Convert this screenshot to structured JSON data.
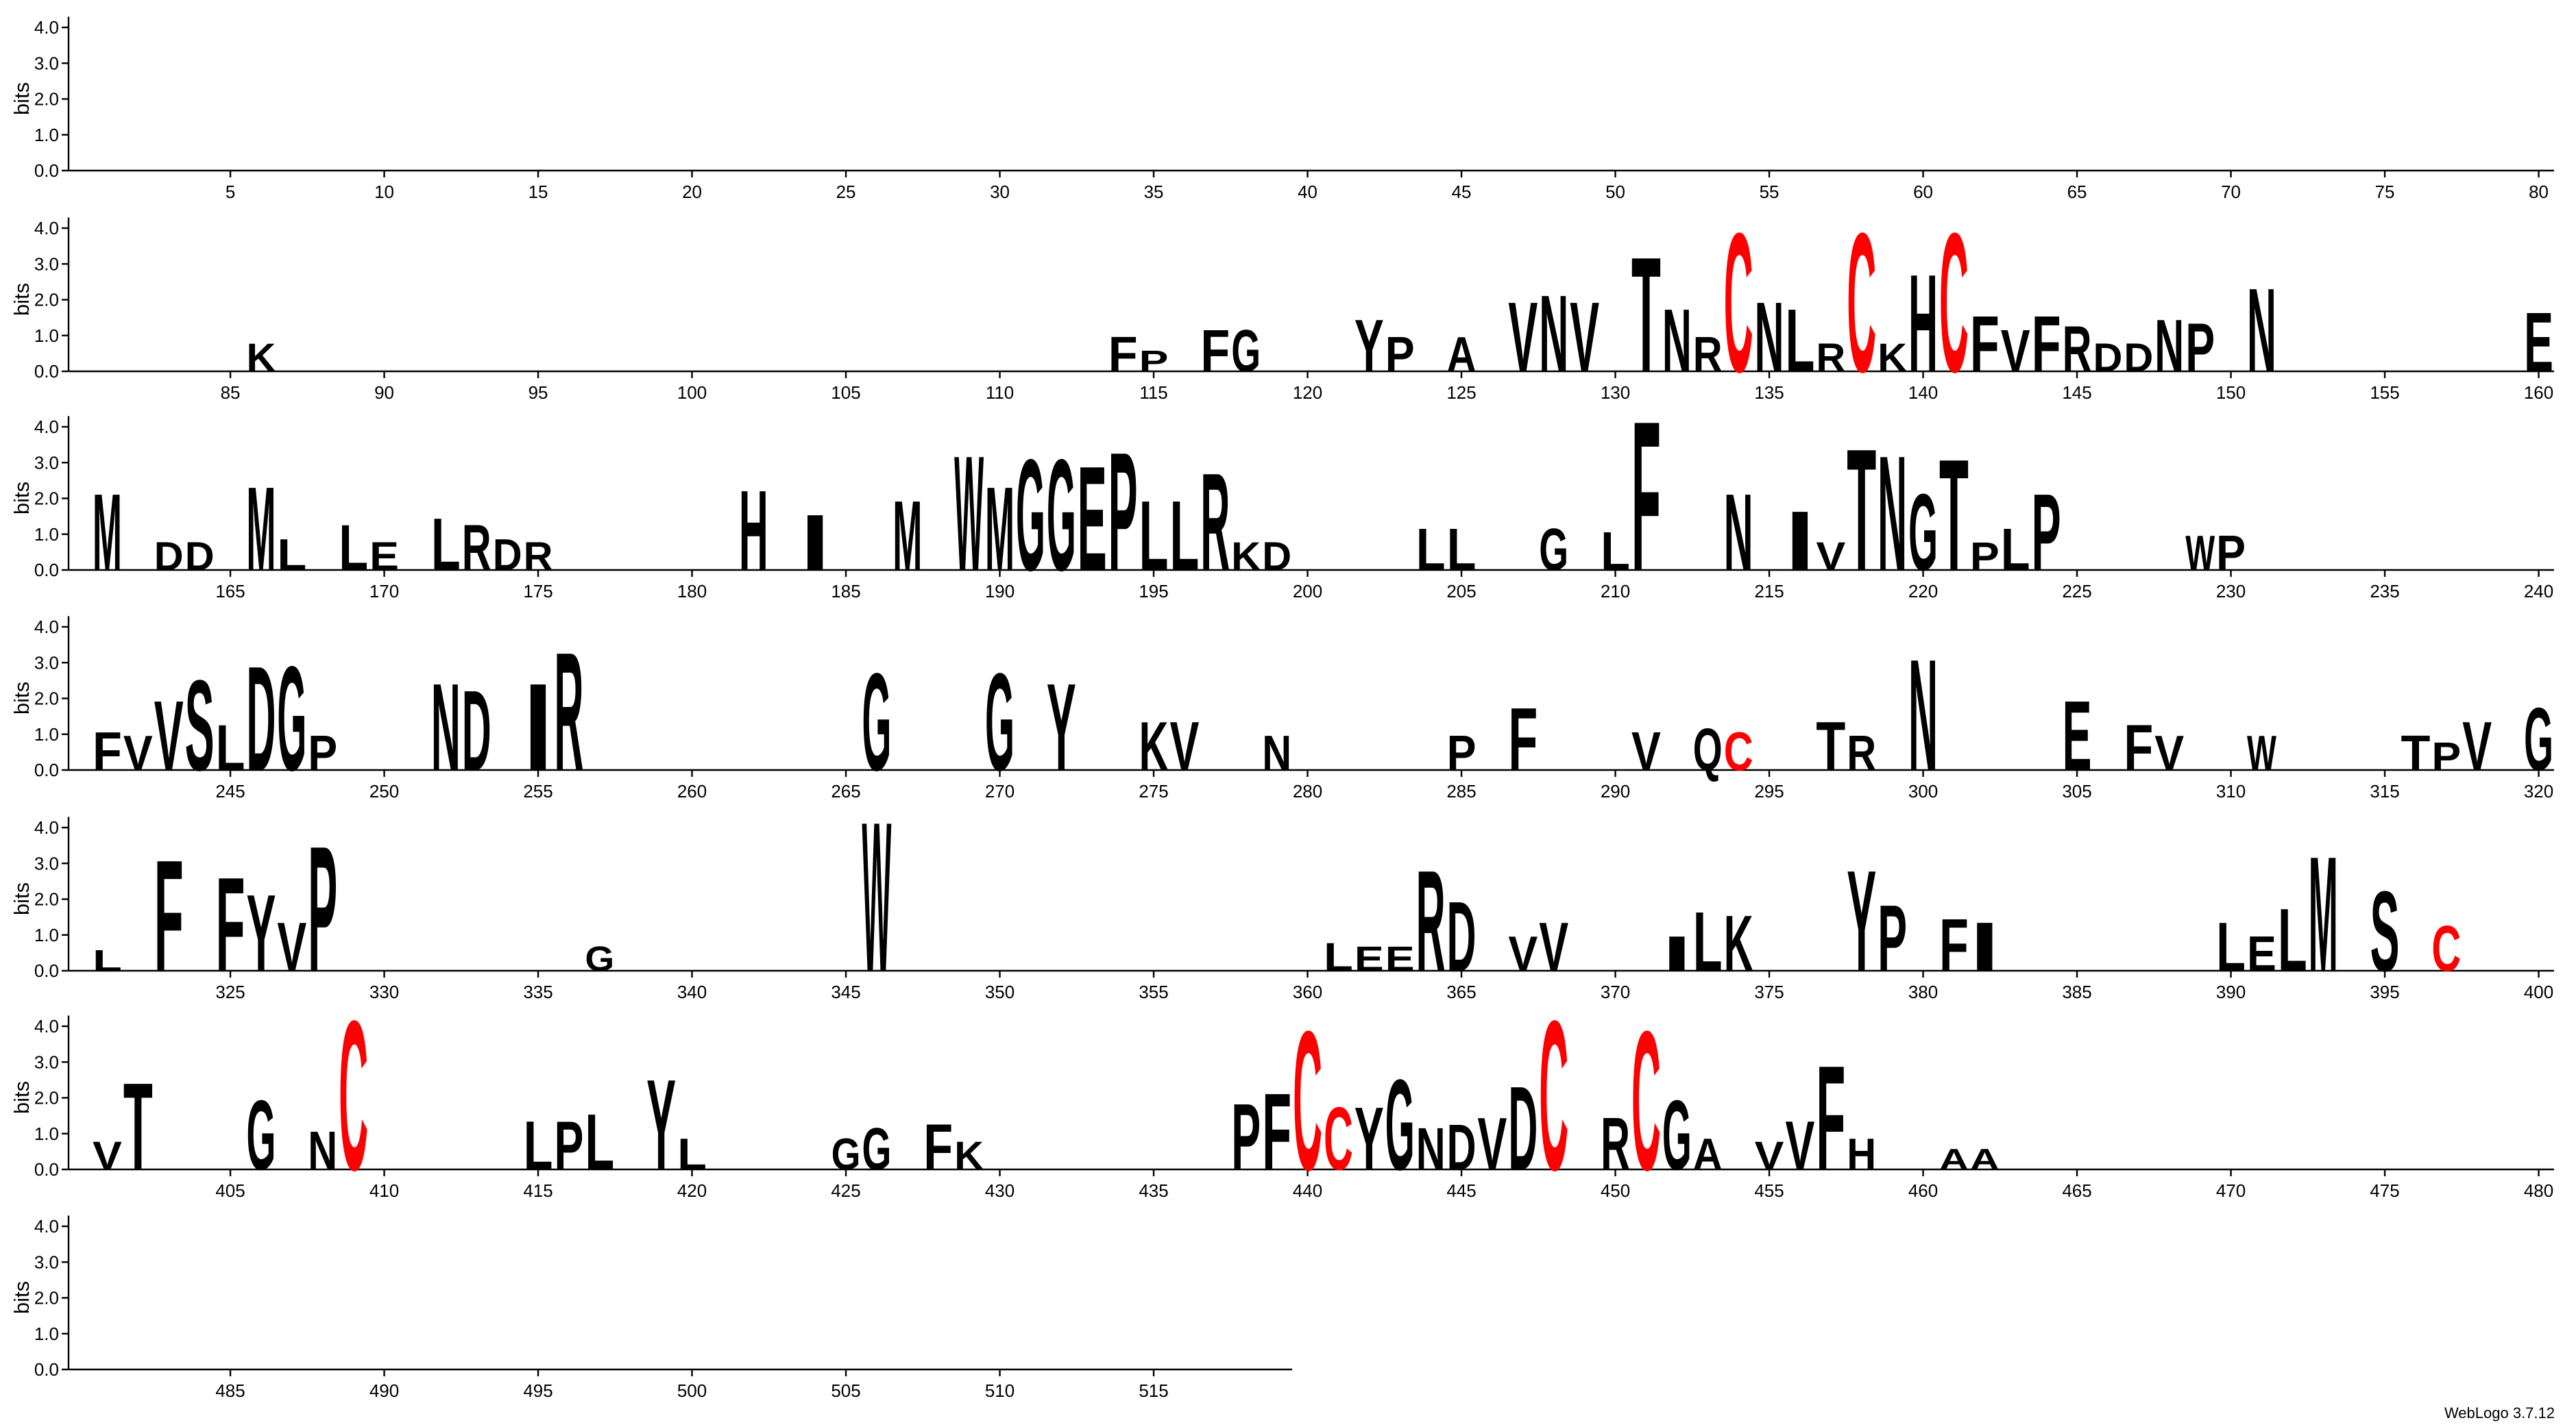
{
  "chart_data": {
    "type": "logo",
    "ylabel": "bits",
    "ylim": [
      0,
      4.3
    ],
    "yticks": [
      {
        "value": 0,
        "label": "0.0"
      },
      {
        "value": 1,
        "label": "1.0"
      },
      {
        "value": 2,
        "label": "2.0"
      },
      {
        "value": 3,
        "label": "3.0"
      },
      {
        "value": 4,
        "label": "4.0"
      }
    ],
    "rows": [
      {
        "xlim": [
          0.5,
          80.5
        ]
      },
      {
        "xlim": [
          80.5,
          160.5
        ]
      },
      {
        "xlim": [
          160.5,
          240.5
        ]
      },
      {
        "xlim": [
          240.5,
          320.5
        ]
      },
      {
        "xlim": [
          320.5,
          400.5
        ]
      },
      {
        "xlim": [
          400.5,
          480.5
        ]
      },
      {
        "xlim": [
          480.5,
          519.5
        ]
      }
    ],
    "xticks": [
      5,
      10,
      15,
      20,
      25,
      30,
      35,
      40,
      45,
      50,
      55,
      60,
      65,
      70,
      75,
      80,
      85,
      90,
      95,
      100,
      105,
      110,
      115,
      120,
      125,
      130,
      135,
      140,
      145,
      150,
      155,
      160,
      165,
      170,
      175,
      180,
      185,
      190,
      195,
      200,
      205,
      210,
      215,
      220,
      225,
      230,
      235,
      240,
      245,
      250,
      255,
      260,
      265,
      270,
      275,
      280,
      285,
      290,
      295,
      300,
      305,
      310,
      315,
      320,
      325,
      330,
      335,
      340,
      345,
      350,
      355,
      360,
      365,
      370,
      375,
      380,
      385,
      390,
      395,
      400,
      405,
      410,
      415,
      420,
      425,
      430,
      435,
      440,
      445,
      450,
      455,
      460,
      465,
      470,
      475,
      480,
      485,
      490,
      495,
      500,
      505,
      510,
      515
    ],
    "color": "#000000",
    "colors": {
      "C": "#ff0000"
    },
    "stacks": [
      {
        "x": 86,
        "letter": "K",
        "bits": 0.8
      },
      {
        "x": 114,
        "letter": "F",
        "bits": 1.0
      },
      {
        "x": 115,
        "letter": "P",
        "bits": 0.6
      },
      {
        "x": 117,
        "letter": "F",
        "bits": 1.2
      },
      {
        "x": 118,
        "letter": "G",
        "bits": 1.2
      },
      {
        "x": 122,
        "letter": "Y",
        "bits": 1.5
      },
      {
        "x": 123,
        "letter": "P",
        "bits": 1.0
      },
      {
        "x": 125,
        "letter": "A",
        "bits": 1.0
      },
      {
        "x": 127,
        "letter": "V",
        "bits": 2.0
      },
      {
        "x": 128,
        "letter": "N",
        "bits": 2.2
      },
      {
        "x": 129,
        "letter": "V",
        "bits": 2.0
      },
      {
        "x": 131,
        "letter": "T",
        "bits": 3.3
      },
      {
        "x": 132,
        "letter": "N",
        "bits": 1.8
      },
      {
        "x": 133,
        "letter": "R",
        "bits": 1.0
      },
      {
        "x": 134,
        "letter": "C",
        "bits": 4.0
      },
      {
        "x": 135,
        "letter": "N",
        "bits": 2.0
      },
      {
        "x": 136,
        "letter": "L",
        "bits": 1.8
      },
      {
        "x": 137,
        "letter": "R",
        "bits": 0.8
      },
      {
        "x": 138,
        "letter": "C",
        "bits": 4.0
      },
      {
        "x": 139,
        "letter": "K",
        "bits": 0.8
      },
      {
        "x": 140,
        "letter": "H",
        "bits": 2.8
      },
      {
        "x": 141,
        "letter": "C",
        "bits": 4.0
      },
      {
        "x": 142,
        "letter": "F",
        "bits": 1.6
      },
      {
        "x": 143,
        "letter": "V",
        "bits": 1.2
      },
      {
        "x": 144,
        "letter": "F",
        "bits": 1.6
      },
      {
        "x": 145,
        "letter": "R",
        "bits": 1.3
      },
      {
        "x": 146,
        "letter": "D",
        "bits": 0.8
      },
      {
        "x": 147,
        "letter": "D",
        "bits": 0.8
      },
      {
        "x": 148,
        "letter": "N",
        "bits": 1.5
      },
      {
        "x": 149,
        "letter": "P",
        "bits": 1.4
      },
      {
        "x": 151,
        "letter": "N",
        "bits": 2.4
      },
      {
        "x": 160,
        "letter": "E",
        "bits": 1.7
      },
      {
        "x": 161,
        "letter": "M",
        "bits": 2.2
      },
      {
        "x": 163,
        "letter": "D",
        "bits": 0.8
      },
      {
        "x": 164,
        "letter": "D",
        "bits": 0.8
      },
      {
        "x": 166,
        "letter": "M",
        "bits": 2.4
      },
      {
        "x": 167,
        "letter": "L",
        "bits": 0.9
      },
      {
        "x": 169,
        "letter": "L",
        "bits": 1.3
      },
      {
        "x": 170,
        "letter": "E",
        "bits": 0.8
      },
      {
        "x": 172,
        "letter": "L",
        "bits": 1.5
      },
      {
        "x": 173,
        "letter": "R",
        "bits": 1.3
      },
      {
        "x": 174,
        "letter": "D",
        "bits": 0.9
      },
      {
        "x": 175,
        "letter": "R",
        "bits": 0.8
      },
      {
        "x": 182,
        "letter": "H",
        "bits": 2.3
      },
      {
        "x": 184,
        "letter": "I",
        "bits": 1.6
      },
      {
        "x": 187,
        "letter": "M",
        "bits": 2.0
      },
      {
        "x": 189,
        "letter": "W",
        "bits": 3.3
      },
      {
        "x": 190,
        "letter": "M",
        "bits": 2.4
      },
      {
        "x": 191,
        "letter": "G",
        "bits": 3.2
      },
      {
        "x": 192,
        "letter": "G",
        "bits": 3.2
      },
      {
        "x": 193,
        "letter": "E",
        "bits": 3.0
      },
      {
        "x": 194,
        "letter": "P",
        "bits": 3.4
      },
      {
        "x": 195,
        "letter": "L",
        "bits": 2.0
      },
      {
        "x": 196,
        "letter": "L",
        "bits": 2.0
      },
      {
        "x": 197,
        "letter": "R",
        "bits": 2.8
      },
      {
        "x": 198,
        "letter": "K",
        "bits": 0.8
      },
      {
        "x": 199,
        "letter": "D",
        "bits": 0.8
      },
      {
        "x": 204,
        "letter": "L",
        "bits": 1.2
      },
      {
        "x": 205,
        "letter": "L",
        "bits": 1.2
      },
      {
        "x": 208,
        "letter": "G",
        "bits": 1.2
      },
      {
        "x": 210,
        "letter": "L",
        "bits": 1.1
      },
      {
        "x": 211,
        "letter": "F",
        "bits": 4.3
      },
      {
        "x": 214,
        "letter": "N",
        "bits": 2.2
      },
      {
        "x": 216,
        "letter": "I",
        "bits": 1.7
      },
      {
        "x": 217,
        "letter": "V",
        "bits": 0.8
      },
      {
        "x": 218,
        "letter": "T",
        "bits": 3.5
      },
      {
        "x": 219,
        "letter": "N",
        "bits": 3.3
      },
      {
        "x": 220,
        "letter": "G",
        "bits": 2.2
      },
      {
        "x": 221,
        "letter": "T",
        "bits": 3.2
      },
      {
        "x": 222,
        "letter": "P",
        "bits": 0.8
      },
      {
        "x": 223,
        "letter": "L",
        "bits": 1.2
      },
      {
        "x": 224,
        "letter": "P",
        "bits": 2.2
      },
      {
        "x": 229,
        "letter": "W",
        "bits": 1.0
      },
      {
        "x": 230,
        "letter": "P",
        "bits": 1.0
      },
      {
        "x": 241,
        "letter": "F",
        "bits": 1.1
      },
      {
        "x": 242,
        "letter": "V",
        "bits": 1.0
      },
      {
        "x": 243,
        "letter": "V",
        "bits": 2.0
      },
      {
        "x": 244,
        "letter": "S",
        "bits": 2.6
      },
      {
        "x": 245,
        "letter": "L",
        "bits": 1.3
      },
      {
        "x": 246,
        "letter": "D",
        "bits": 3.0
      },
      {
        "x": 247,
        "letter": "G",
        "bits": 3.0
      },
      {
        "x": 248,
        "letter": "P",
        "bits": 1.0
      },
      {
        "x": 252,
        "letter": "N",
        "bits": 2.5
      },
      {
        "x": 253,
        "letter": "D",
        "bits": 2.3
      },
      {
        "x": 255,
        "letter": "I",
        "bits": 2.5
      },
      {
        "x": 256,
        "letter": "R",
        "bits": 3.4
      },
      {
        "x": 266,
        "letter": "G",
        "bits": 2.8
      },
      {
        "x": 270,
        "letter": "G",
        "bits": 2.8
      },
      {
        "x": 272,
        "letter": "Y",
        "bits": 2.5
      },
      {
        "x": 275,
        "letter": "K",
        "bits": 1.4
      },
      {
        "x": 276,
        "letter": "V",
        "bits": 1.4
      },
      {
        "x": 279,
        "letter": "N",
        "bits": 1.0
      },
      {
        "x": 285,
        "letter": "P",
        "bits": 1.0
      },
      {
        "x": 287,
        "letter": "F",
        "bits": 1.8
      },
      {
        "x": 291,
        "letter": "V",
        "bits": 1.1
      },
      {
        "x": 293,
        "letter": "Q",
        "bits": 1.2
      },
      {
        "x": 294,
        "letter": "C",
        "bits": 1.1
      },
      {
        "x": 297,
        "letter": "T",
        "bits": 1.4
      },
      {
        "x": 298,
        "letter": "R",
        "bits": 1.0
      },
      {
        "x": 300,
        "letter": "N",
        "bits": 3.2
      },
      {
        "x": 305,
        "letter": "E",
        "bits": 2.0
      },
      {
        "x": 307,
        "letter": "F",
        "bits": 1.3
      },
      {
        "x": 308,
        "letter": "V",
        "bits": 1.0
      },
      {
        "x": 311,
        "letter": "W",
        "bits": 1.0
      },
      {
        "x": 316,
        "letter": "T",
        "bits": 1.0
      },
      {
        "x": 317,
        "letter": "P",
        "bits": 0.8
      },
      {
        "x": 318,
        "letter": "V",
        "bits": 1.4
      },
      {
        "x": 320,
        "letter": "G",
        "bits": 1.8
      },
      {
        "x": 321,
        "letter": "L",
        "bits": 0.6
      },
      {
        "x": 323,
        "letter": "F",
        "bits": 3.2
      },
      {
        "x": 325,
        "letter": "F",
        "bits": 2.7
      },
      {
        "x": 326,
        "letter": "Y",
        "bits": 2.2
      },
      {
        "x": 327,
        "letter": "V",
        "bits": 1.4
      },
      {
        "x": 328,
        "letter": "P",
        "bits": 3.6
      },
      {
        "x": 337,
        "letter": "G",
        "bits": 0.7
      },
      {
        "x": 346,
        "letter": "W",
        "bits": 4.3
      },
      {
        "x": 361,
        "letter": "L",
        "bits": 0.8
      },
      {
        "x": 362,
        "letter": "E",
        "bits": 0.7
      },
      {
        "x": 363,
        "letter": "E",
        "bits": 0.7
      },
      {
        "x": 364,
        "letter": "R",
        "bits": 2.9
      },
      {
        "x": 365,
        "letter": "D",
        "bits": 2.0
      },
      {
        "x": 367,
        "letter": "V",
        "bits": 1.0
      },
      {
        "x": 368,
        "letter": "V",
        "bits": 1.4
      },
      {
        "x": 372,
        "letter": "I",
        "bits": 1.0
      },
      {
        "x": 373,
        "letter": "L",
        "bits": 1.7
      },
      {
        "x": 374,
        "letter": "K",
        "bits": 1.6
      },
      {
        "x": 378,
        "letter": "Y",
        "bits": 2.9
      },
      {
        "x": 379,
        "letter": "P",
        "bits": 1.9
      },
      {
        "x": 381,
        "letter": "F",
        "bits": 1.5
      },
      {
        "x": 382,
        "letter": "I",
        "bits": 1.4
      },
      {
        "x": 390,
        "letter": "L",
        "bits": 1.4
      },
      {
        "x": 391,
        "letter": "E",
        "bits": 1.0
      },
      {
        "x": 392,
        "letter": "L",
        "bits": 1.8
      },
      {
        "x": 393,
        "letter": "M",
        "bits": 3.3
      },
      {
        "x": 395,
        "letter": "S",
        "bits": 2.3
      },
      {
        "x": 397,
        "letter": "C",
        "bits": 1.3
      },
      {
        "x": 401,
        "letter": "V",
        "bits": 0.8
      },
      {
        "x": 402,
        "letter": "T",
        "bits": 2.5
      },
      {
        "x": 406,
        "letter": "G",
        "bits": 2.0
      },
      {
        "x": 408,
        "letter": "N",
        "bits": 1.1
      },
      {
        "x": 409,
        "letter": "C",
        "bits": 4.3
      },
      {
        "x": 415,
        "letter": "L",
        "bits": 1.4
      },
      {
        "x": 416,
        "letter": "P",
        "bits": 1.4
      },
      {
        "x": 417,
        "letter": "L",
        "bits": 1.6
      },
      {
        "x": 419,
        "letter": "Y",
        "bits": 2.6
      },
      {
        "x": 420,
        "letter": "L",
        "bits": 0.9
      },
      {
        "x": 425,
        "letter": "G",
        "bits": 0.9
      },
      {
        "x": 426,
        "letter": "G",
        "bits": 1.2
      },
      {
        "x": 428,
        "letter": "F",
        "bits": 1.3
      },
      {
        "x": 429,
        "letter": "K",
        "bits": 0.8
      },
      {
        "x": 438,
        "letter": "P",
        "bits": 1.9
      },
      {
        "x": 439,
        "letter": "F",
        "bits": 2.2
      },
      {
        "x": 440,
        "letter": "C",
        "bits": 4.0
      },
      {
        "x": 441,
        "letter": "C",
        "bits": 1.8
      },
      {
        "x": 442,
        "letter": "Y",
        "bits": 1.8
      },
      {
        "x": 443,
        "letter": "G",
        "bits": 2.6
      },
      {
        "x": 444,
        "letter": "N",
        "bits": 1.2
      },
      {
        "x": 445,
        "letter": "D",
        "bits": 1.3
      },
      {
        "x": 446,
        "letter": "V",
        "bits": 1.5
      },
      {
        "x": 447,
        "letter": "D",
        "bits": 2.4
      },
      {
        "x": 448,
        "letter": "C",
        "bits": 4.3
      },
      {
        "x": 450,
        "letter": "R",
        "bits": 1.5
      },
      {
        "x": 451,
        "letter": "C",
        "bits": 4.0
      },
      {
        "x": 452,
        "letter": "G",
        "bits": 2.0
      },
      {
        "x": 453,
        "letter": "A",
        "bits": 0.9
      },
      {
        "x": 455,
        "letter": "V",
        "bits": 0.8
      },
      {
        "x": 456,
        "letter": "V",
        "bits": 1.4
      },
      {
        "x": 457,
        "letter": "F",
        "bits": 3.0
      },
      {
        "x": 458,
        "letter": "H",
        "bits": 0.9
      },
      {
        "x": 461,
        "letter": "A",
        "bits": 0.6
      },
      {
        "x": 462,
        "letter": "A",
        "bits": 0.6
      }
    ],
    "footer": "WebLogo 3.7.12"
  }
}
